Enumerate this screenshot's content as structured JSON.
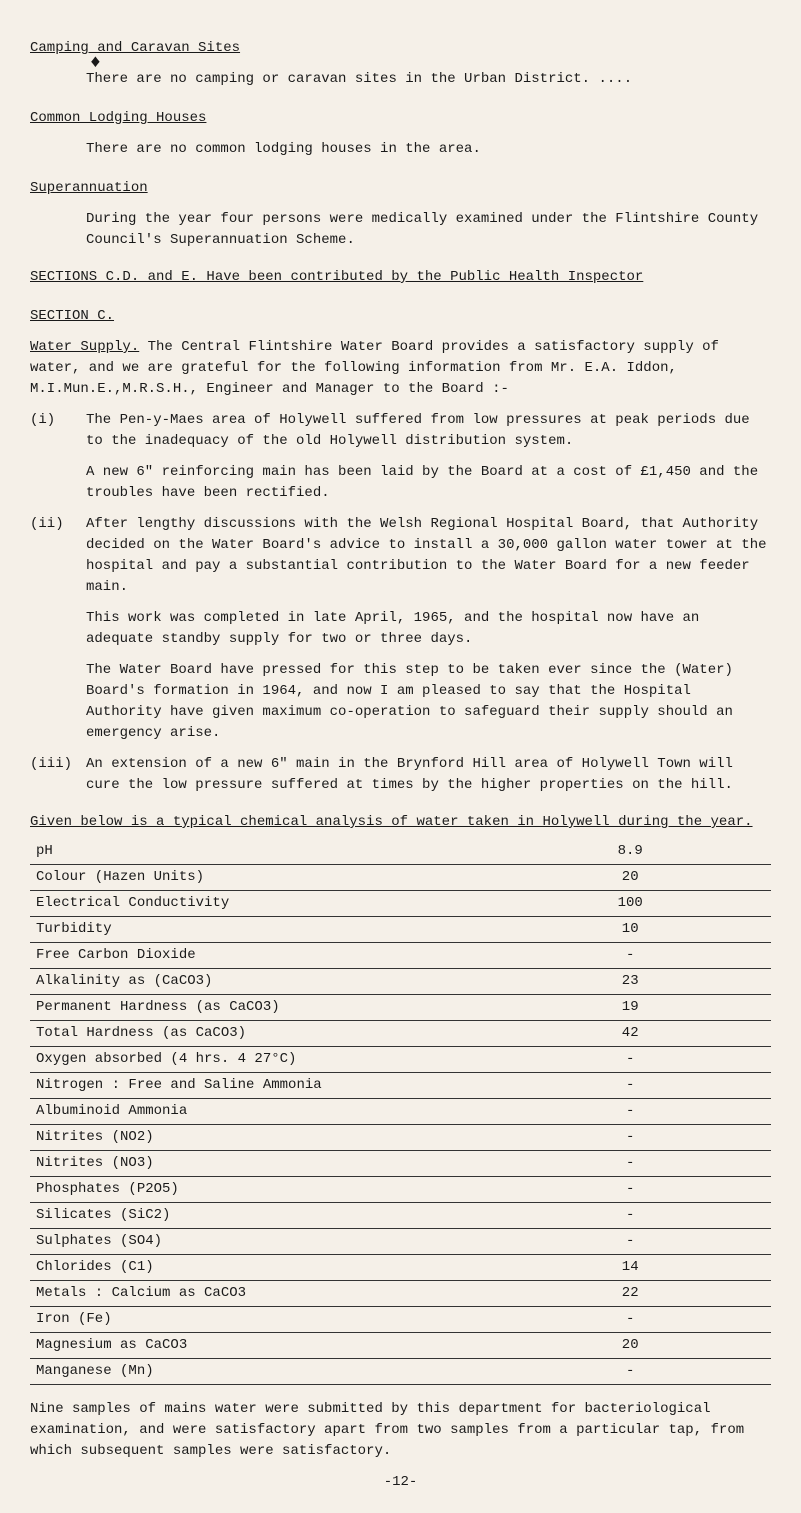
{
  "headings": {
    "camping": "Camping and Caravan Sites",
    "lodging": "Common Lodging Houses",
    "superannuation": "Superannuation",
    "sections_cd_e": "SECTIONS C.D. and E. Have been contributed by the Public Health Inspector",
    "section_c": "SECTION C.",
    "water_supply_label": "Water Supply.",
    "given_below": "Given below is a typical chemical analysis of water taken in Holywell during the year."
  },
  "body": {
    "camping_text": "There are no camping or caravan sites in the Urban District. ....",
    "lodging_text": "There are no common lodging houses in the area.",
    "superannuation_text": "During the year four persons were medically examined under the Flintshire County Council's Superannuation Scheme.",
    "water_supply_text": "The Central Flintshire Water Board provides a satisfactory supply of water, and we are grateful for the following information from Mr. E.A. Iddon, M.I.Mun.E.,M.R.S.H., Engineer and Manager to the Board :-",
    "item_i_marker": "(i)",
    "item_i_p1": "The Pen-y-Maes area of Holywell suffered from low pressures at peak periods due to the inadequacy of the old Holywell distribution system.",
    "item_i_p2": "A new 6\" reinforcing main has been laid by the Board at a cost of £1,450 and the troubles have been rectified.",
    "item_ii_marker": "(ii)",
    "item_ii_p1": "After lengthy discussions with the Welsh Regional Hospital Board, that Authority decided on the Water Board's advice to install a 30,000 gallon water tower at the hospital and pay a substantial contribution to the Water Board for a new feeder main.",
    "item_ii_p2": "This work was completed in late April, 1965, and the hospital now have an adequate standby supply for two or three days.",
    "item_ii_p3": "The Water Board have pressed for this step to be taken ever since the (Water) Board's formation in 1964, and now I am pleased to say that the Hospital Authority have given maximum co-operation to safeguard their supply should an emergency arise.",
    "item_iii_marker": "(iii)",
    "item_iii_p1": "An extension of a new 6\" main in the Brynford Hill area of Holywell Town will cure the low pressure suffered at times by the higher properties on the hill.",
    "closing_p": "Nine samples of mains water were submitted by this department for bacteriological examination, and were satisfactory apart from two samples from a particular tap, from which subsequent samples were satisfactory.",
    "page_number": "-12-"
  },
  "analysis_table": {
    "rows": [
      {
        "param": "pH",
        "value": "8.9"
      },
      {
        "param": "Colour (Hazen Units)",
        "value": "20"
      },
      {
        "param": "Electrical Conductivity",
        "value": "100"
      },
      {
        "param": "Turbidity",
        "value": "10"
      },
      {
        "param": "Free Carbon Dioxide",
        "value": "-"
      },
      {
        "param": "Alkalinity as (CaCO3)",
        "value": "23"
      },
      {
        "param": "Permanent Hardness (as CaCO3)",
        "value": "19"
      },
      {
        "param": "Total Hardness (as CaCO3)",
        "value": "42"
      },
      {
        "param": "Oxygen absorbed (4 hrs. 4 27°C)",
        "value": "-"
      },
      {
        "param": "Nitrogen :  Free and Saline Ammonia",
        "value": "-"
      },
      {
        "param": "            Albuminoid Ammonia",
        "value": "-",
        "class": "subindent"
      },
      {
        "param": "            Nitrites (NO2)",
        "value": "-",
        "class": "subindent"
      },
      {
        "param": "            Nitrites (NO3)",
        "value": "-",
        "class": "subindent"
      },
      {
        "param": "Phosphates (P2O5)",
        "value": "-"
      },
      {
        "param": "Silicates (SiC2)",
        "value": "-"
      },
      {
        "param": "Sulphates (SO4)",
        "value": "-"
      },
      {
        "param": "Chlorides (C1)",
        "value": "14"
      },
      {
        "param": "Metals :   Calcium as CaCO3",
        "value": "22"
      },
      {
        "param": "           Iron (Fe)",
        "value": "-",
        "class": "subindent"
      },
      {
        "param": "           Magnesium as CaCO3",
        "value": "20",
        "class": "subindent"
      },
      {
        "param": "           Manganese (Mn)",
        "value": "-",
        "class": "subindent"
      }
    ]
  }
}
